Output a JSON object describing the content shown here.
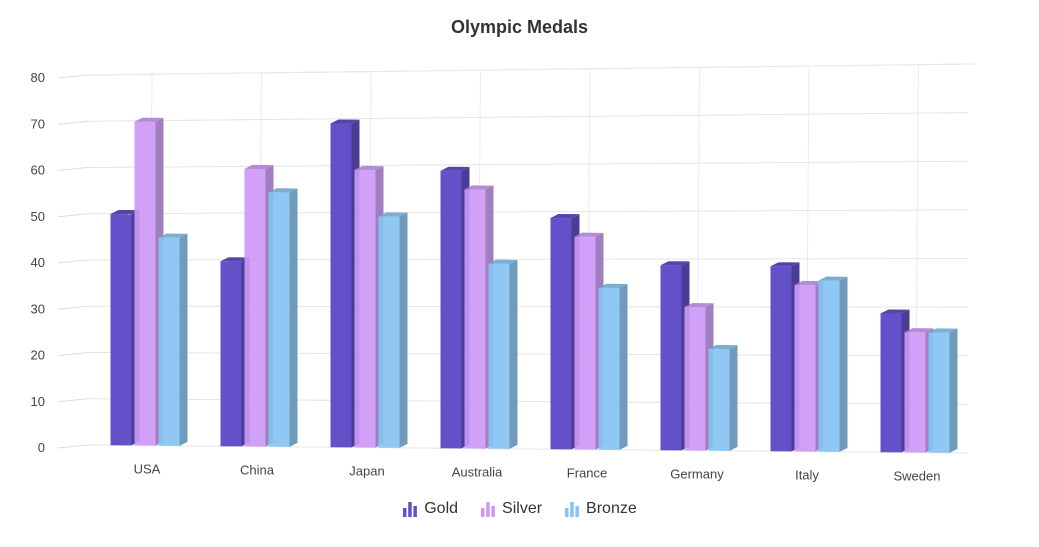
{
  "chart_data": {
    "type": "bar",
    "title": "Olympic Medals",
    "categories": [
      "USA",
      "China",
      "Japan",
      "Australia",
      "France",
      "Germany",
      "Italy",
      "Sweden"
    ],
    "series": [
      {
        "name": "Gold",
        "color": "#6450c8",
        "values": [
          50,
          40,
          70,
          60,
          50,
          40,
          40,
          30
        ]
      },
      {
        "name": "Silver",
        "color": "#cc99f5",
        "values": [
          70,
          60,
          60,
          56,
          46,
          31,
          36,
          26
        ]
      },
      {
        "name": "Bronze",
        "color": "#86c3f2",
        "values": [
          45,
          55,
          50,
          40,
          35,
          22,
          37,
          26
        ]
      }
    ],
    "ylim": [
      0,
      80
    ],
    "yticks": [
      0,
      10,
      20,
      30,
      40,
      50,
      60,
      70,
      80
    ],
    "xlabel": "",
    "ylabel": "",
    "legend": "bottom-center",
    "grid": true
  }
}
